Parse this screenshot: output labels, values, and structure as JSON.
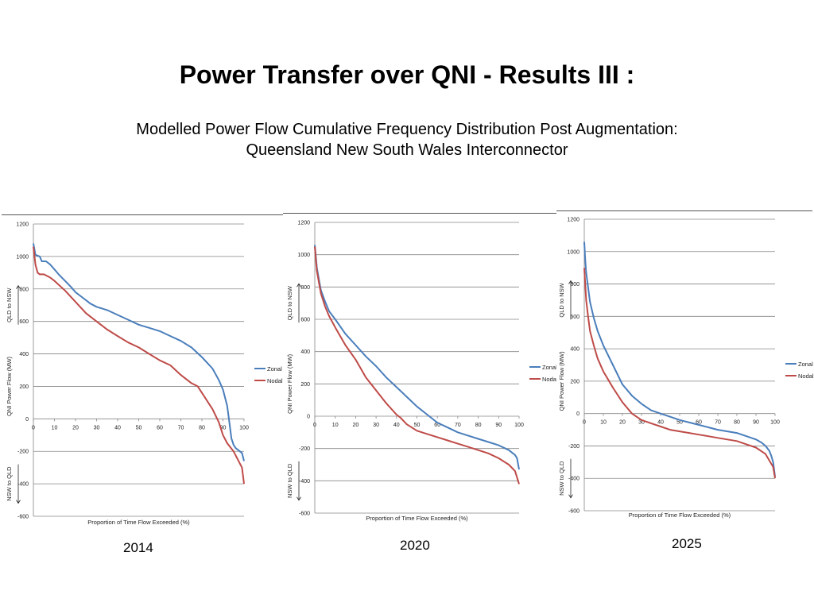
{
  "slide": {
    "title": "Power Transfer over QNI - Results III :",
    "subtitle_line1": "Modelled Power Flow Cumulative Frequency Distribution Post Augmentation:",
    "subtitle_line2": "Queensland New South Wales Interconnector"
  },
  "colors": {
    "zonal": "#4a7ebb",
    "nodal": "#be4b48",
    "grid": "#868686",
    "axis": "#868686"
  },
  "chart_data": [
    {
      "type": "line",
      "year": "2014",
      "xlabel": "Proportion of Time Flow Exceeded (%)",
      "ylabel": "QNI Power Flow (MW)",
      "annotation_top": "QLD to NSW",
      "annotation_bottom": "NSW to QLD",
      "xlim": [
        0,
        100
      ],
      "ylim": [
        -600,
        1200
      ],
      "xticks": [
        "0",
        "10",
        "20",
        "30",
        "40",
        "50",
        "60",
        "70",
        "80",
        "90",
        "100"
      ],
      "yticks": [
        "1200",
        "1000",
        "800",
        "600",
        "400",
        "200",
        "0",
        "-200",
        "-400",
        "-600"
      ],
      "grid": true,
      "legend": "right",
      "series": [
        {
          "name": "Zonal",
          "color": "#4a7ebb",
          "x": [
            0,
            1,
            3,
            4,
            6,
            8,
            10,
            12,
            15,
            18,
            20,
            23,
            25,
            27,
            30,
            35,
            40,
            45,
            50,
            55,
            60,
            65,
            70,
            75,
            80,
            85,
            88,
            90,
            92,
            93,
            94,
            95,
            96,
            97,
            99,
            100
          ],
          "y": [
            1080,
            1010,
            1000,
            970,
            970,
            950,
            920,
            890,
            850,
            810,
            780,
            750,
            730,
            710,
            690,
            670,
            640,
            610,
            580,
            560,
            540,
            510,
            480,
            440,
            380,
            310,
            240,
            180,
            80,
            -20,
            -120,
            -160,
            -180,
            -190,
            -210,
            -260
          ]
        },
        {
          "name": "Nodal",
          "color": "#be4b48",
          "x": [
            0,
            1,
            2,
            3,
            5,
            8,
            10,
            15,
            20,
            25,
            30,
            35,
            40,
            45,
            50,
            55,
            60,
            65,
            70,
            75,
            78,
            80,
            85,
            88,
            90,
            92,
            95,
            97,
            99,
            100
          ],
          "y": [
            1060,
            950,
            900,
            890,
            890,
            870,
            850,
            790,
            720,
            650,
            600,
            550,
            510,
            470,
            440,
            400,
            360,
            330,
            270,
            220,
            200,
            160,
            60,
            -20,
            -100,
            -150,
            -200,
            -250,
            -300,
            -400
          ]
        }
      ]
    },
    {
      "type": "line",
      "year": "2020",
      "xlabel": "Proportion of Time Flow Exceeded (%)",
      "ylabel": "QNI Power Flow (MW)",
      "annotation_top": "QLD to NSW",
      "annotation_bottom": "NSW to QLD",
      "xlim": [
        0,
        100
      ],
      "ylim": [
        -600,
        1200
      ],
      "xticks": [
        "0",
        "10",
        "20",
        "30",
        "40",
        "50",
        "60",
        "70",
        "80",
        "90",
        "100"
      ],
      "yticks": [
        "1200",
        "1000",
        "800",
        "600",
        "400",
        "200",
        "0",
        "-200",
        "-400",
        "-600"
      ],
      "grid": true,
      "legend": "right",
      "series": [
        {
          "name": "Zonal",
          "color": "#4a7ebb",
          "x": [
            0,
            1,
            2,
            3,
            5,
            7,
            10,
            15,
            20,
            25,
            30,
            35,
            40,
            45,
            50,
            55,
            60,
            65,
            70,
            75,
            80,
            85,
            90,
            95,
            98,
            99,
            100
          ],
          "y": [
            1060,
            920,
            850,
            780,
            710,
            650,
            600,
            510,
            440,
            370,
            310,
            240,
            180,
            120,
            60,
            10,
            -40,
            -70,
            -100,
            -120,
            -140,
            -160,
            -180,
            -210,
            -240,
            -260,
            -330
          ]
        },
        {
          "name": "Nodal",
          "color": "#be4b48",
          "x": [
            0,
            1,
            2,
            3,
            5,
            7,
            10,
            15,
            20,
            25,
            30,
            35,
            40,
            42,
            45,
            50,
            55,
            60,
            65,
            70,
            75,
            80,
            85,
            90,
            95,
            98,
            100
          ],
          "y": [
            1050,
            900,
            830,
            760,
            680,
            620,
            550,
            440,
            350,
            240,
            160,
            80,
            10,
            -10,
            -50,
            -90,
            -110,
            -130,
            -150,
            -170,
            -190,
            -210,
            -230,
            -260,
            -300,
            -340,
            -420
          ]
        }
      ]
    },
    {
      "type": "line",
      "year": "2025",
      "xlabel": "Proportion of Time Flow Exceeded (%)",
      "ylabel": "QNI Power Flow (MW)",
      "annotation_top": "QLD to NSW",
      "annotation_bottom": "NSW to QLD",
      "xlim": [
        0,
        100
      ],
      "ylim": [
        -600,
        1200
      ],
      "xticks": [
        "0",
        "10",
        "20",
        "30",
        "40",
        "50",
        "60",
        "70",
        "80",
        "90",
        "100"
      ],
      "yticks": [
        "1200",
        "1000",
        "800",
        "600",
        "400",
        "200",
        "0",
        "-200",
        "-400",
        "-600"
      ],
      "grid": true,
      "legend": "right",
      "series": [
        {
          "name": "Zonal",
          "color": "#4a7ebb",
          "x": [
            0,
            0.5,
            1,
            2,
            3,
            5,
            7,
            10,
            15,
            20,
            25,
            30,
            35,
            40,
            45,
            50,
            55,
            60,
            65,
            70,
            75,
            80,
            85,
            90,
            93,
            95,
            97,
            98,
            99,
            100
          ],
          "y": [
            1060,
            950,
            870,
            780,
            690,
            590,
            510,
            420,
            300,
            180,
            110,
            60,
            20,
            0,
            -20,
            -40,
            -55,
            -70,
            -85,
            -100,
            -110,
            -120,
            -140,
            -160,
            -180,
            -200,
            -230,
            -260,
            -300,
            -390
          ]
        },
        {
          "name": "Nodal",
          "color": "#be4b48",
          "x": [
            0,
            0.5,
            1,
            2,
            3,
            5,
            7,
            10,
            15,
            20,
            25,
            30,
            35,
            40,
            45,
            50,
            55,
            60,
            65,
            70,
            75,
            80,
            85,
            90,
            95,
            97,
            99,
            100
          ],
          "y": [
            900,
            800,
            700,
            600,
            510,
            420,
            340,
            260,
            160,
            70,
            0,
            -40,
            -60,
            -80,
            -100,
            -110,
            -120,
            -130,
            -140,
            -150,
            -160,
            -170,
            -190,
            -210,
            -250,
            -290,
            -330,
            -400
          ]
        }
      ]
    }
  ]
}
